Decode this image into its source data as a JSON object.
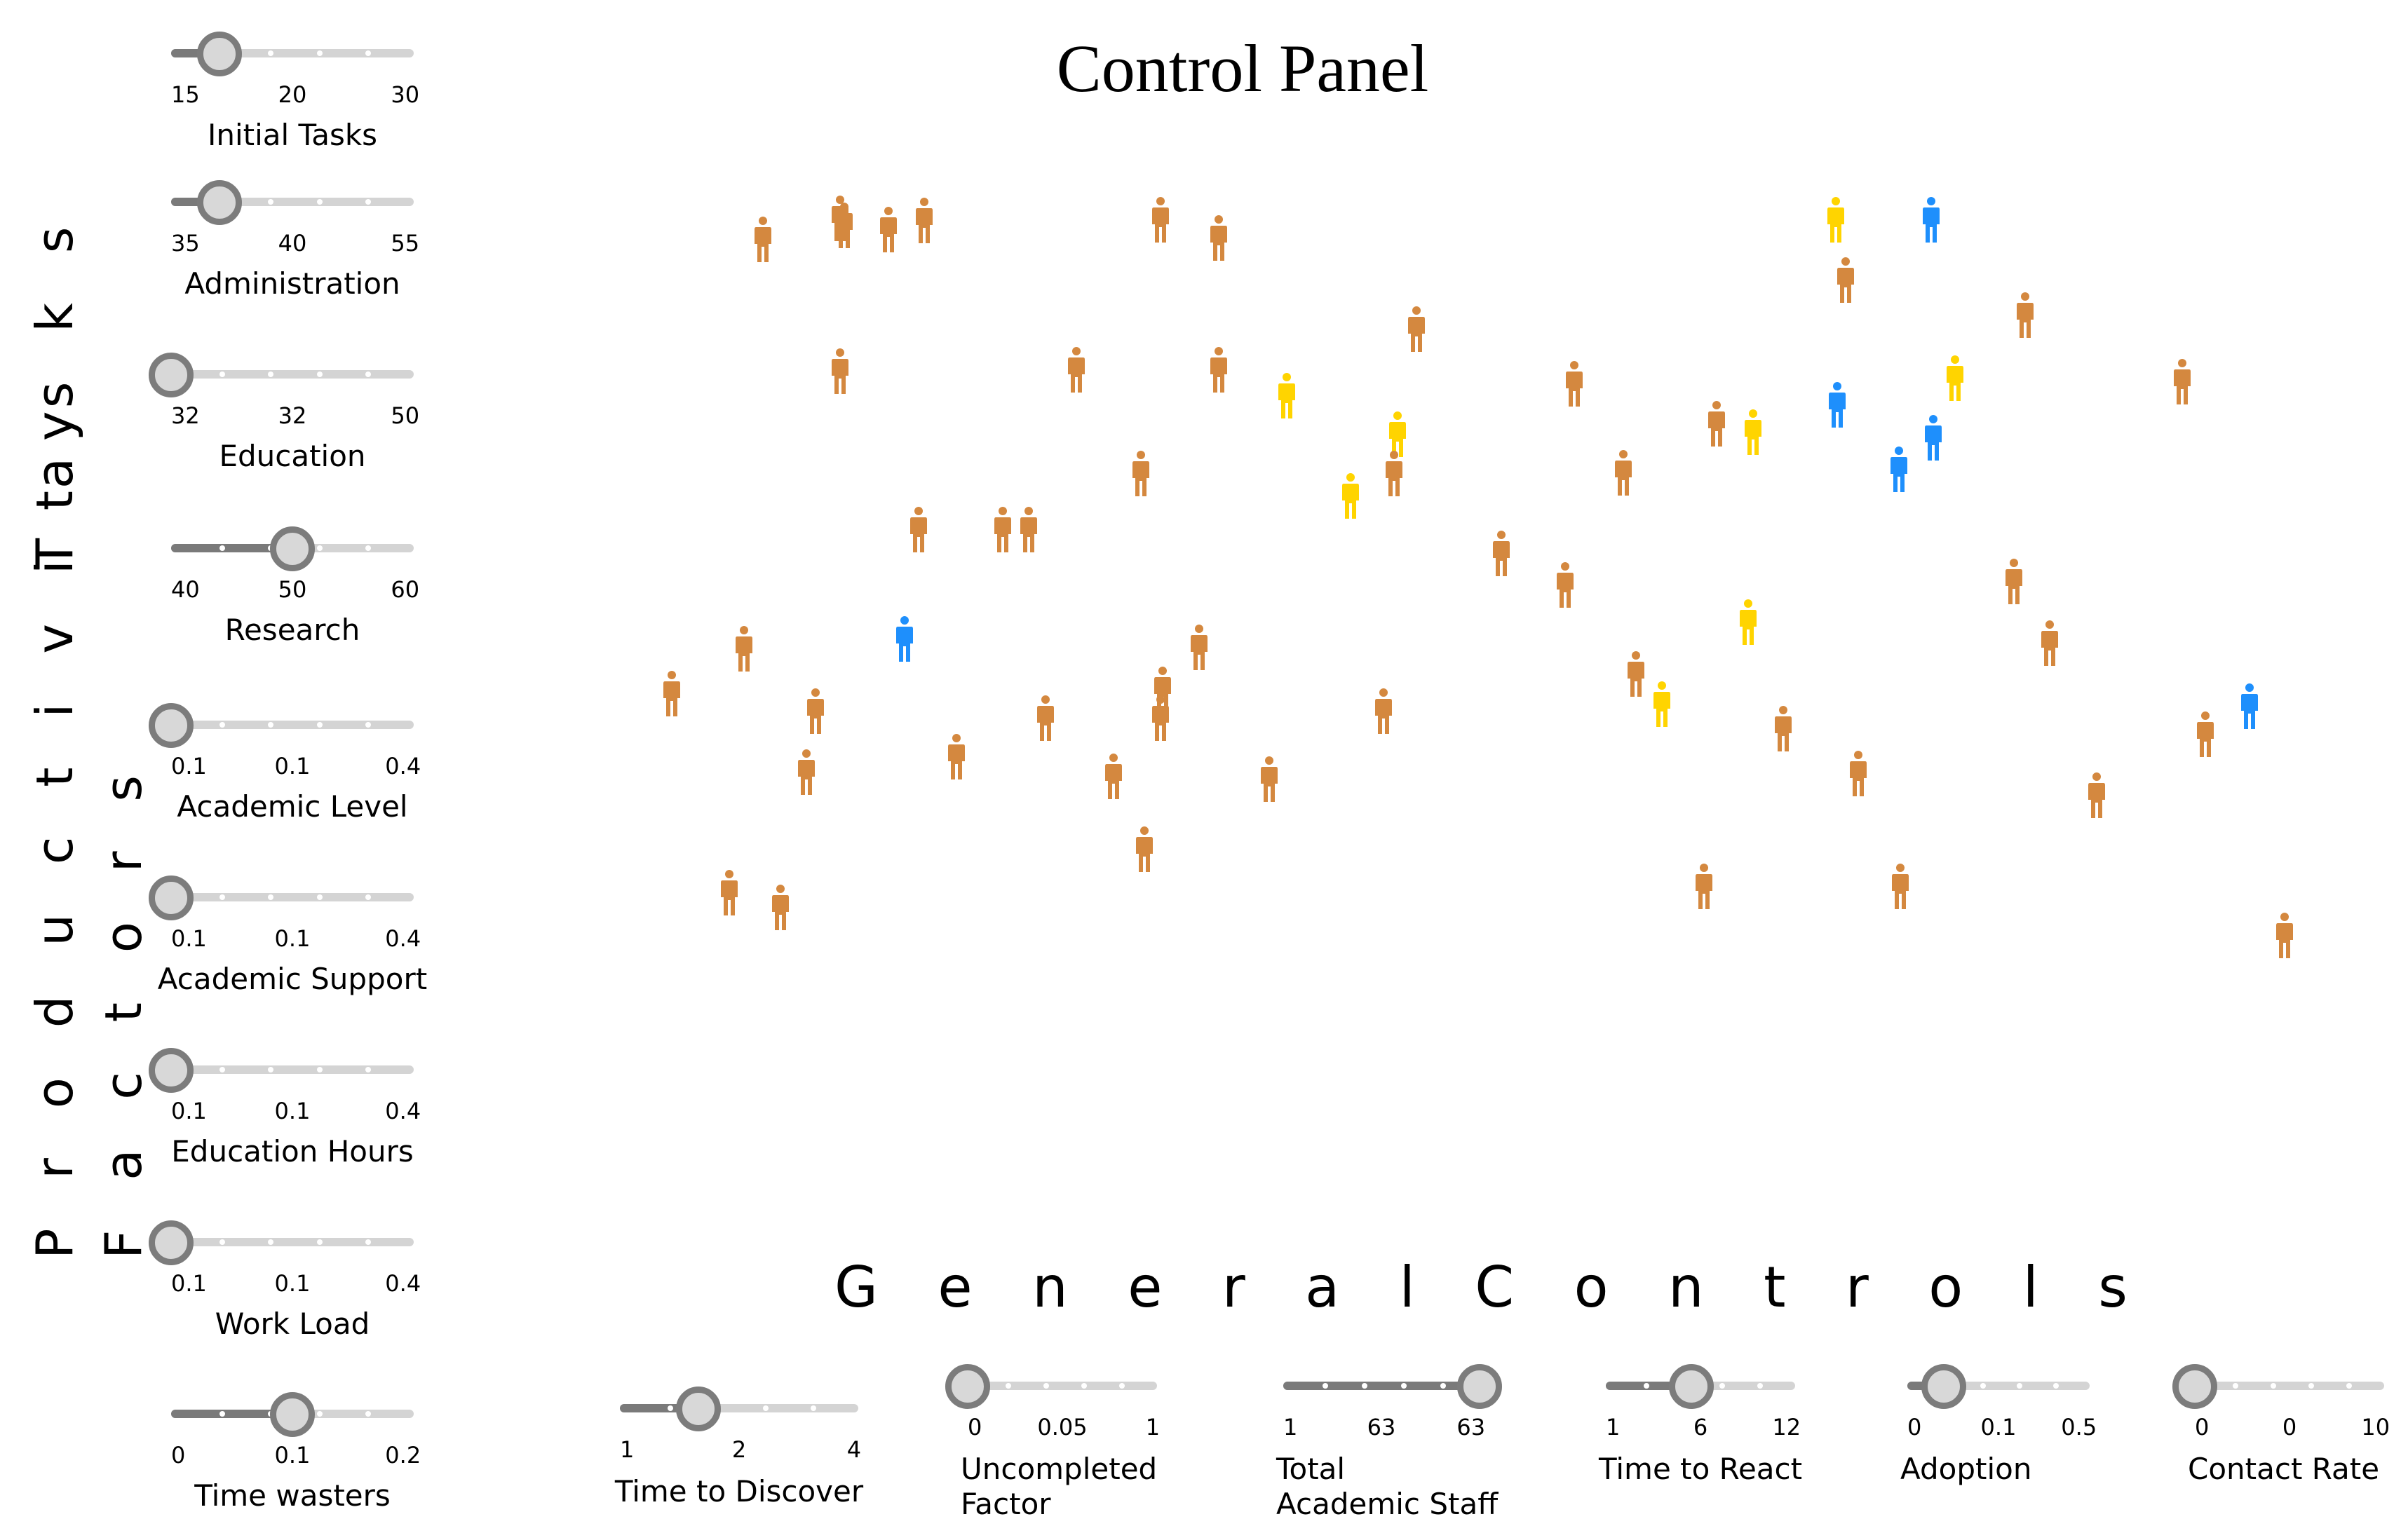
{
  "title": "Control Panel",
  "sections": {
    "tasks": "T a s k s",
    "productivity": "P r o d u c t i v i t y",
    "factors": "F a c t o r s",
    "general": "G e n e r a l C o n t r o l s"
  },
  "colors": {
    "academic": "#d4883f",
    "discovered": "#ffd400",
    "adopted": "#1e8ffc",
    "slider_fill": "#7a7a7a",
    "slider_track": "#d4d4d4",
    "knob_border": "#7c7c7c",
    "knob_fill": "#d8d8d8"
  },
  "side_sliders": [
    {
      "label": "Initial Tasks",
      "min": "15",
      "mid": "20",
      "max": "30",
      "value": 0.2
    },
    {
      "label": "Administration",
      "min": "35",
      "mid": "40",
      "max": "55",
      "value": 0.2
    },
    {
      "label": "Education",
      "min": "32",
      "mid": "32",
      "max": "50",
      "value": 0.0
    },
    {
      "label": "Research",
      "min": "40",
      "mid": "50",
      "max": "60",
      "value": 0.5
    },
    {
      "label": "Academic Level",
      "min": "0.1",
      "mid": "0.1",
      "max": "0.4",
      "value": 0.0
    },
    {
      "label": "Academic Support",
      "min": "0.1",
      "mid": "0.1",
      "max": "0.4",
      "value": 0.0
    },
    {
      "label": "Education Hours",
      "min": "0.1",
      "mid": "0.1",
      "max": "0.4",
      "value": 0.0
    },
    {
      "label": "Work Load",
      "min": "0.1",
      "mid": "0.1",
      "max": "0.4",
      "value": 0.0
    },
    {
      "label": "Time wasters",
      "min": "0",
      "mid": "0.1",
      "max": "0.2",
      "value": 0.5
    }
  ],
  "general_controls": [
    {
      "label": "Time to Discover",
      "min": "1",
      "mid": "2",
      "max": "4",
      "value": 0.33
    },
    {
      "label": "Uncompleted\nFactor",
      "min": "0",
      "mid": "0.05",
      "max": "1",
      "value": 0.0
    },
    {
      "label": "Total\nAcademic Staff",
      "min": "1",
      "mid": "63",
      "max": "63",
      "value": 1.0
    },
    {
      "label": "Time to React",
      "min": "1",
      "mid": "6",
      "max": "12",
      "value": 0.45
    },
    {
      "label": "Adoption",
      "min": "0",
      "mid": "0.1",
      "max": "0.5",
      "value": 0.2
    },
    {
      "label": "Contact Rate",
      "min": "0",
      "mid": "0",
      "max": "10",
      "value": 0.0
    }
  ]
}
